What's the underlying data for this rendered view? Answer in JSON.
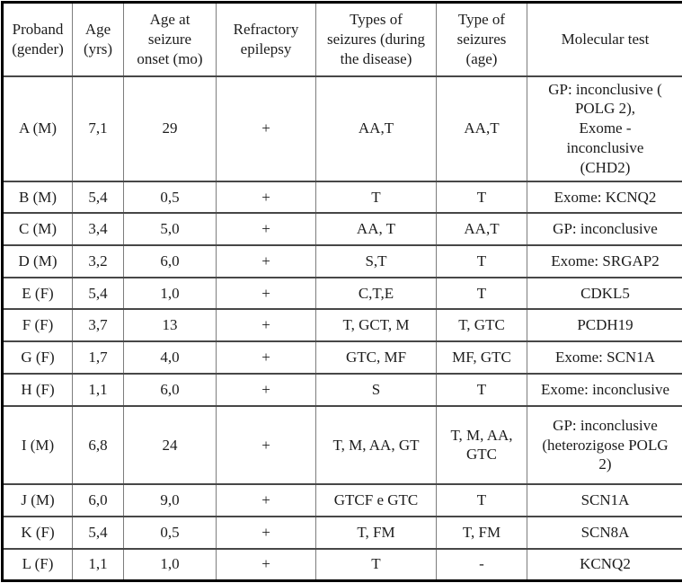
{
  "page": {
    "background": "#ffffff",
    "text_color": "#1c1c1c",
    "outer_border_color": "#000000",
    "inner_horizontal_line_color": "#474747",
    "inner_vertical_line_color": "#7d7d7d"
  },
  "table": {
    "headers": [
      "Proband\n(gender)",
      "Age\n(yrs)",
      "Age at\nseizure\nonset (mo)",
      "Refractory\nepilepsy",
      "Types of\nseizures (during\nthe disease)",
      "Type of\nseizures\n(age)",
      "Molecular test"
    ],
    "rows": [
      [
        "A (M)",
        "7,1",
        "29",
        "+",
        "AA,T",
        "AA,T",
        "GP: inconclusive (\nPOLG 2),\nExome -\ninconclusive\n(CHD2)"
      ],
      [
        "B (M)",
        "5,4",
        "0,5",
        "+",
        "T",
        "T",
        "Exome: KCNQ2"
      ],
      [
        "C (M)",
        "3,4",
        "5,0",
        "+",
        "AA, T",
        "AA,T",
        "GP: inconclusive"
      ],
      [
        "D (M)",
        "3,2",
        "6,0",
        "+",
        "S,T",
        "T",
        "Exome: SRGAP2"
      ],
      [
        "E (F)",
        "5,4",
        "1,0",
        "+",
        "C,T,E",
        "T",
        "CDKL5"
      ],
      [
        "F (F)",
        "3,7",
        "13",
        "+",
        "T, GCT, M",
        "T, GTC",
        "PCDH19"
      ],
      [
        "G (F)",
        "1,7",
        "4,0",
        "+",
        "GTC, MF",
        "MF, GTC",
        "Exome: SCN1A"
      ],
      [
        "H (F)",
        "1,1",
        "6,0",
        "+",
        "S",
        "T",
        "Exome: inconclusive"
      ],
      [
        "I (M)",
        "6,8",
        "24",
        "+",
        "T, M, AA, GT",
        "T, M, AA,\nGTC",
        "GP: inconclusive\n(heterozigose POLG\n2)"
      ],
      [
        "J (M)",
        "6,0",
        "9,0",
        "+",
        "GTCF e GTC",
        "T",
        "SCN1A"
      ],
      [
        "K (F)",
        "5,4",
        "0,5",
        "+",
        "T, FM",
        "T, FM",
        "SCN8A"
      ],
      [
        "L (F)",
        "1,1",
        "1,0",
        "+",
        "T",
        "-",
        "KCNQ2"
      ]
    ]
  }
}
